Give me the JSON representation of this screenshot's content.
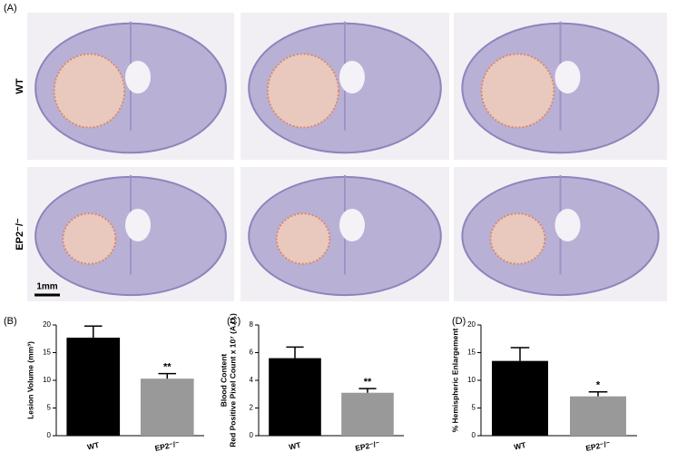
{
  "figure": {
    "panel_a": {
      "label": "(A)",
      "rows": [
        "WT",
        "EP2⁻/⁻"
      ],
      "scale_bar": "1mm"
    }
  },
  "chart_data": [
    {
      "type": "bar",
      "panel": "(B)",
      "ylabel": [
        "Lesion Volume (mm³)"
      ],
      "categories": [
        "WT",
        "EP2⁻/⁻"
      ],
      "values": [
        17.7,
        10.3
      ],
      "errors": [
        2.1,
        0.9
      ],
      "colors": [
        "#000000",
        "#999999"
      ],
      "annotations": [
        null,
        "**"
      ],
      "ylim": [
        0,
        20
      ],
      "yticks": [
        0,
        5,
        10,
        15,
        20
      ]
    },
    {
      "type": "bar",
      "panel": "(C)",
      "ylabel": [
        "Blood Content",
        "Red Positive Pixel Count x 10⁷ (A.U.)"
      ],
      "categories": [
        "WT",
        "EP2⁻/⁻"
      ],
      "values": [
        5.6,
        3.1
      ],
      "errors": [
        0.8,
        0.3
      ],
      "colors": [
        "#000000",
        "#999999"
      ],
      "annotations": [
        null,
        "**"
      ],
      "ylim": [
        0,
        8
      ],
      "yticks": [
        0,
        2,
        4,
        6,
        8
      ]
    },
    {
      "type": "bar",
      "panel": "(D)",
      "ylabel": [
        "% Hemispheric Enlargement"
      ],
      "categories": [
        "WT",
        "EP2⁻/⁻"
      ],
      "values": [
        13.5,
        7.1
      ],
      "errors": [
        2.4,
        0.8
      ],
      "colors": [
        "#000000",
        "#999999"
      ],
      "annotations": [
        null,
        "*"
      ],
      "ylim": [
        0,
        20
      ],
      "yticks": [
        0,
        5,
        10,
        15,
        20
      ]
    }
  ]
}
